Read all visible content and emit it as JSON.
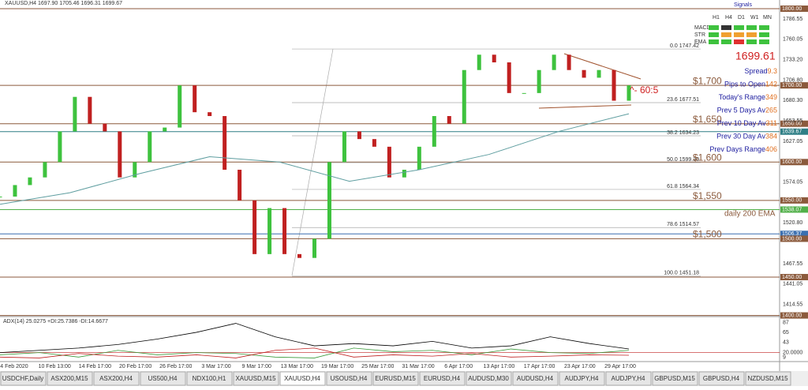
{
  "header": {
    "title": "XAUUSD,H4 1697.90 1705.46 1696.31 1699.67"
  },
  "price": {
    "min": 1400,
    "max": 1800,
    "candles": [
      1555,
      1570,
      1580,
      1600,
      1640,
      1685,
      1650,
      1640,
      1580,
      1600,
      1640,
      1645,
      1700,
      1665,
      1660,
      1590,
      1550,
      1480,
      1540,
      1480,
      1475,
      1500,
      1600,
      1640,
      1630,
      1620,
      1580,
      1590,
      1620,
      1660,
      1650,
      1720,
      1740,
      1730,
      1690,
      1690,
      1720,
      1740,
      1720,
      1710,
      1720,
      1680,
      1700
    ],
    "ema": [
      1545,
      1560,
      1585,
      1607,
      1600,
      1575,
      1590,
      1610,
      1640,
      1663
    ],
    "axis_labels": [
      {
        "value": 1786.55,
        "label": "1786.55"
      },
      {
        "value": 1760.05,
        "label": "1760.05"
      },
      {
        "value": 1733.2,
        "label": "1733.20"
      },
      {
        "value": 1706.8,
        "label": "1706.80"
      },
      {
        "value": 1680.3,
        "label": "1680.30"
      },
      {
        "value": 1653.55,
        "label": "1653.55"
      },
      {
        "value": 1627.05,
        "label": "1627.05"
      },
      {
        "value": 1574.05,
        "label": "1574.05"
      },
      {
        "value": 1520.8,
        "label": "1520.80"
      },
      {
        "value": 1467.55,
        "label": "1467.55"
      },
      {
        "value": 1441.05,
        "label": "1441.05"
      },
      {
        "value": 1414.55,
        "label": "1414.55"
      }
    ],
    "levels": [
      {
        "value": 1800,
        "label": "1800.00",
        "color": "#8b5a3c"
      },
      {
        "value": 1700,
        "label": "1700.00",
        "color": "#8b5a3c"
      },
      {
        "value": 1650,
        "label": "1650.00",
        "color": "#8b5a3c"
      },
      {
        "value": 1639.67,
        "label": "1639.67",
        "color": "#2f7f86"
      },
      {
        "value": 1600,
        "label": "1600.00",
        "color": "#8b5a3c"
      },
      {
        "value": 1550,
        "label": "1550.00",
        "color": "#8b5a3c"
      },
      {
        "value": 1538.07,
        "label": "1538.07",
        "color": "#52b04a"
      },
      {
        "value": 1506.37,
        "label": "1506.37",
        "color": "#3a6fb0"
      },
      {
        "value": 1500,
        "label": "1500.00",
        "color": "#8b5a3c"
      },
      {
        "value": 1450,
        "label": "1450.00",
        "color": "#8b5a3c"
      },
      {
        "value": 1400,
        "label": "1400.00",
        "color": "#8b5a3c"
      }
    ],
    "fib": [
      {
        "value": 1747.42,
        "label": "0.0 1747.42"
      },
      {
        "value": 1677.51,
        "label": "23.6 1677.51"
      },
      {
        "value": 1634.23,
        "label": "38.2 1634.23"
      },
      {
        "value": 1599.3,
        "label": "50.0 1599.30"
      },
      {
        "value": 1564.34,
        "label": "61.8 1564.34"
      },
      {
        "value": 1514.57,
        "label": "78.6 1514.57"
      },
      {
        "value": 1451.18,
        "label": "100.0 1451.18"
      }
    ],
    "round_labels": [
      {
        "value": 1700,
        "label": "$1,700"
      },
      {
        "value": 1650,
        "label": "$1,650"
      },
      {
        "value": 1600,
        "label": "$1,600"
      },
      {
        "value": 1550,
        "label": "$1,550"
      },
      {
        "value": 1500,
        "label": "$1,500"
      }
    ],
    "ema_label": "daily 200 EMA",
    "last_price": "1699.61",
    "arrow_note": "^- 60:5"
  },
  "signals": {
    "title": "Signals",
    "columns": [
      "H1",
      "H4",
      "D1",
      "W1",
      "MN"
    ],
    "rows": [
      {
        "name": "MACD",
        "colors": [
          "#3ec23e",
          "#333333",
          "#3ec23e",
          "#3ec23e",
          "#3ec23e"
        ]
      },
      {
        "name": "STR",
        "colors": [
          "#3ec23e",
          "#f0a030",
          "#f0a030",
          "#f0a030",
          "#3ec23e"
        ]
      },
      {
        "name": "EMA",
        "colors": [
          "#3ec23e",
          "#3ec23e",
          "#e03030",
          "#3ec23e",
          "#3ec23e"
        ]
      }
    ]
  },
  "info": [
    {
      "label": "Spread",
      "value": "9.3"
    },
    {
      "label": "Pips to Open",
      "value": "142"
    },
    {
      "label": "Today's Range",
      "value": "349"
    },
    {
      "label": "Prev 5 Days Av",
      "value": "265"
    },
    {
      "label": "Prev 10 Day Av",
      "value": "311"
    },
    {
      "label": "Prev 30 Day Av",
      "value": "384"
    },
    {
      "label": "Prev Days Range",
      "value": "406"
    }
  ],
  "adx": {
    "title": "ADX(14) 25.0275 +DI:25.7386 -DI:14.6677",
    "axis_labels": [
      {
        "value": 87,
        "label": "87"
      },
      {
        "value": 65,
        "label": "65"
      },
      {
        "value": 43,
        "label": "43"
      },
      {
        "value": 20,
        "label": "20.0000"
      },
      {
        "value": 9,
        "label": "9"
      }
    ],
    "adx": [
      20,
      25,
      30,
      38,
      50,
      65,
      85,
      55,
      35,
      40,
      35,
      45,
      30,
      35,
      55,
      40,
      28
    ],
    "plus_di": [
      15,
      20,
      10,
      25,
      15,
      20,
      18,
      10,
      8,
      30,
      22,
      25,
      15,
      28,
      20,
      18,
      25
    ],
    "minus_di": [
      10,
      8,
      18,
      12,
      10,
      15,
      8,
      25,
      30,
      10,
      15,
      12,
      18,
      10,
      12,
      15,
      14
    ]
  },
  "time_labels": [
    "4 Feb 2020",
    "10 Feb 13:00",
    "14 Feb 17:00",
    "20 Feb 17:00",
    "26 Feb 17:00",
    "3 Mar 17:00",
    "9 Mar 17:00",
    "13 Mar 17:00",
    "19 Mar 17:00",
    "25 Mar 17:00",
    "31 Mar 17:00",
    "6 Apr 17:00",
    "13 Apr 17:00",
    "17 Apr 17:00",
    "23 Apr 17:00",
    "29 Apr 17:00"
  ],
  "tabs": [
    "USDCHF,Daily",
    "ASX200,M15",
    "ASX200,H4",
    "US500,H4",
    "NDX100,H1",
    "XAUUSD,M15",
    "XAUUSD,H4",
    "USOUSD,H4",
    "EURUSD,M15",
    "EURUSD,H4",
    "AUDUSD,M30",
    "AUDUSD,H4",
    "AUDJPY,H4",
    "AUDJPY,H4",
    "GBPUSD,M15",
    "GBPUSD,H4",
    "NZDUSD,M15"
  ],
  "active_tab": 6
}
